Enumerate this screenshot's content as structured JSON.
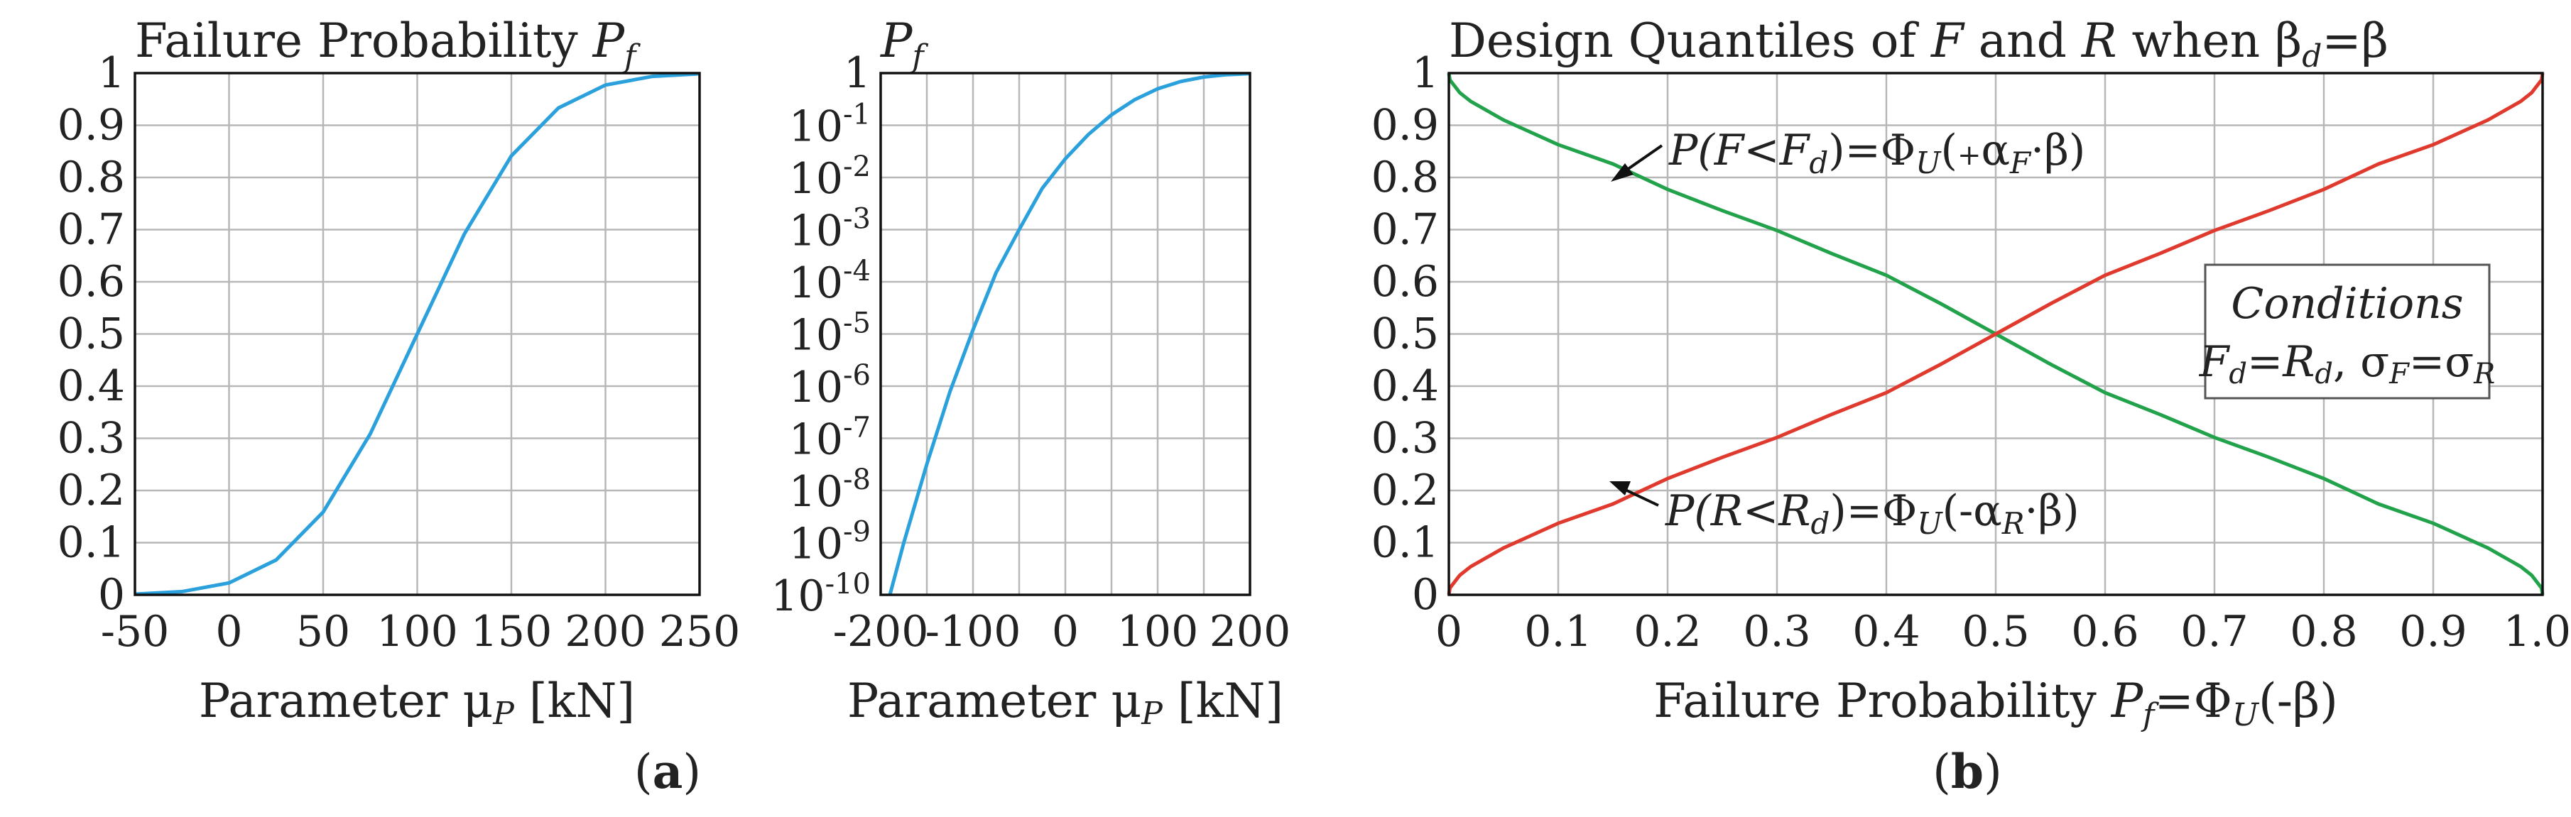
{
  "colors": {
    "blue": "#2aa0dc",
    "green": "#22a24a",
    "red": "#e03a2e",
    "grid": "#b7b7b7"
  },
  "chart_data": [
    {
      "id": "a1",
      "type": "line",
      "title_prefix": "Failure Probability ",
      "title_sym": "P",
      "title_sub": "f",
      "xlabel_prefix": "Parameter ",
      "xlabel_mu": "μ",
      "xlabel_sub": "P",
      "xlabel_suffix": " [kN]",
      "xlim": [
        -50,
        250
      ],
      "ylim": [
        0,
        1
      ],
      "x_ticks": [
        "-50",
        "0",
        "50",
        "100",
        "150",
        "200",
        "250"
      ],
      "y_ticks": [
        "0",
        "0.1",
        "0.2",
        "0.3",
        "0.4",
        "0.5",
        "0.6",
        "0.7",
        "0.8",
        "0.9",
        "1"
      ],
      "series": [
        {
          "name": "Pf",
          "color": "#2aa0dc",
          "x": [
            -50,
            -25,
            0,
            25,
            50,
            75,
            100,
            125,
            150,
            175,
            200,
            225,
            250
          ],
          "y": [
            0.0013,
            0.0062,
            0.0228,
            0.0668,
            0.1587,
            0.3085,
            0.5,
            0.6915,
            0.8413,
            0.9332,
            0.9772,
            0.9938,
            0.9987
          ]
        }
      ]
    },
    {
      "id": "a2",
      "type": "line",
      "yscale": "log",
      "title_sym": "P",
      "title_sub": "f",
      "xlabel_prefix": "Parameter ",
      "xlabel_mu": "μ",
      "xlabel_sub": "P",
      "xlabel_suffix": " [kN]",
      "xlim": [
        -200,
        200
      ],
      "ylim_exp": [
        -10,
        0
      ],
      "x_ticks": [
        "-200",
        "-100",
        "0",
        "100",
        "200"
      ],
      "y_tick_top": "1",
      "y_tick_base": "10",
      "y_tick_exps": [
        "-1",
        "-2",
        "-3",
        "-4",
        "-5",
        "-6",
        "-7",
        "-8",
        "-9",
        "-10"
      ],
      "series": [
        {
          "name": "Pf",
          "color": "#2aa0dc",
          "x": [
            -190,
            -175,
            -150,
            -125,
            -100,
            -75,
            -50,
            -25,
            0,
            25,
            50,
            75,
            100,
            125,
            150,
            175,
            200
          ],
          "y": [
            7.1e-11,
            9.9e-10,
            3.2e-08,
            7.8e-07,
            1.2e-05,
            0.00015,
            0.001,
            0.0062,
            0.0228,
            0.0668,
            0.1587,
            0.3085,
            0.5,
            0.6915,
            0.8413,
            0.9332,
            0.9772
          ]
        }
      ]
    },
    {
      "id": "b",
      "type": "line",
      "title_a": "Design Quantiles of ",
      "title_F": "F",
      "title_b": " and ",
      "title_R": "R",
      "title_c": " when β",
      "title_d": "d",
      "title_e": "=β",
      "xlabel_prefix": "Failure Probability ",
      "xlabel_P": "P",
      "xlabel_sub": "f",
      "xlabel_suffix": "=Φ",
      "xlabel_U": "U",
      "xlabel_end": "(-β)",
      "xlim": [
        0,
        1
      ],
      "ylim": [
        0,
        1
      ],
      "x_ticks": [
        "0",
        "0.1",
        "0.2",
        "0.3",
        "0.4",
        "0.5",
        "0.6",
        "0.7",
        "0.8",
        "0.9",
        "1.0"
      ],
      "y_ticks": [
        "0",
        "0.1",
        "0.2",
        "0.3",
        "0.4",
        "0.5",
        "0.6",
        "0.7",
        "0.8",
        "0.9",
        "1"
      ],
      "series": [
        {
          "name": "P(F<Fd)",
          "color": "#22a24a",
          "x": [
            0,
            0.001,
            0.01,
            0.02,
            0.05,
            0.1,
            0.15,
            0.2,
            0.25,
            0.3,
            0.35,
            0.4,
            0.45,
            0.5,
            0.55,
            0.6,
            0.65,
            0.7,
            0.75,
            0.8,
            0.85,
            0.9,
            0.95,
            0.98,
            0.99,
            0.999,
            1
          ],
          "y": [
            1,
            0.9869,
            0.9625,
            0.9458,
            0.9102,
            0.8628,
            0.8259,
            0.7772,
            0.7365,
            0.6983,
            0.6542,
            0.6125,
            0.5578,
            0.5,
            0.4422,
            0.3875,
            0.3458,
            0.3017,
            0.2635,
            0.2228,
            0.1741,
            0.1372,
            0.0898,
            0.0542,
            0.0375,
            0.0131,
            0
          ]
        },
        {
          "name": "P(R<Rd)",
          "color": "#e03a2e",
          "x": [
            0,
            0.001,
            0.01,
            0.02,
            0.05,
            0.1,
            0.15,
            0.2,
            0.25,
            0.3,
            0.35,
            0.4,
            0.45,
            0.5,
            0.55,
            0.6,
            0.65,
            0.7,
            0.75,
            0.8,
            0.85,
            0.9,
            0.95,
            0.98,
            0.99,
            0.999,
            1
          ],
          "y": [
            0,
            0.0131,
            0.0375,
            0.0542,
            0.0898,
            0.1372,
            0.1741,
            0.2228,
            0.2635,
            0.3017,
            0.3458,
            0.3875,
            0.4422,
            0.5,
            0.5578,
            0.6125,
            0.6542,
            0.6983,
            0.7365,
            0.7772,
            0.8259,
            0.8628,
            0.9102,
            0.9458,
            0.9625,
            0.9869,
            1
          ]
        }
      ],
      "annotation_F": {
        "p": "P(",
        "v1": "F",
        "lt": "<",
        "v2": "F",
        "sub": "d",
        "eq": ")=Φ",
        "U": "U",
        "open": "(",
        "sign": "+",
        "alpha": "α",
        "asub": "F",
        "end": "·β)"
      },
      "annotation_R": {
        "p": "P(",
        "v1": "R",
        "lt": "<",
        "v2": "R",
        "sub": "d",
        "eq": ")=Φ",
        "U": "U",
        "open": "(-",
        "alpha": "α",
        "asub": "R",
        "end": "·β)"
      },
      "conditions": {
        "title": "Conditions",
        "F": "F",
        "Fsub": "d",
        "eq": "=",
        "R": "R",
        "Rsub": "d",
        "comma": ", ",
        "s1": "σ",
        "s1sub": "F",
        "eq2": "=",
        "s2": "σ",
        "s2sub": "R"
      }
    }
  ],
  "captions": {
    "a_open": "(",
    "a_letter": "a",
    "a_close": ")",
    "b_open": "(",
    "b_letter": "b",
    "b_close": ")"
  }
}
